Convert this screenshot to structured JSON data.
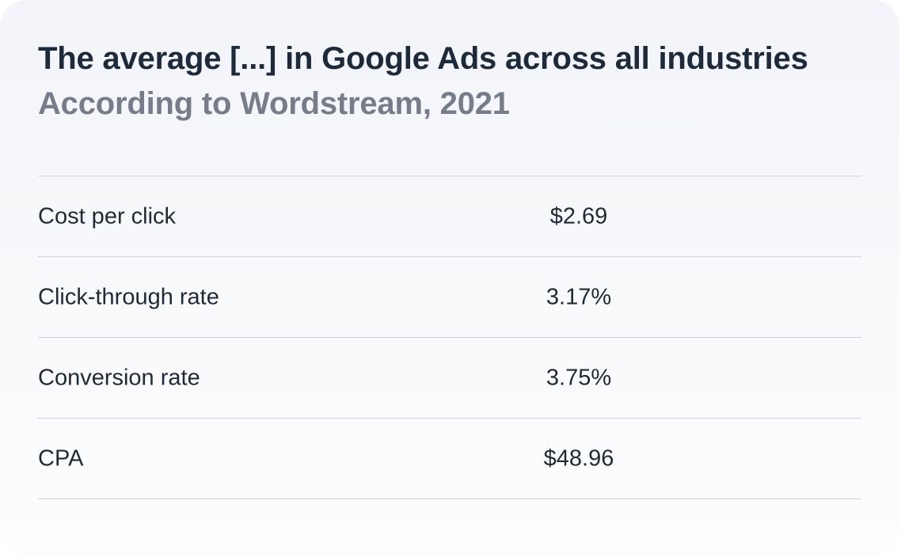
{
  "card": {
    "title": "The average [...] in Google Ads across all industries",
    "subtitle": "According to Wordstream, 2021"
  },
  "chart_data": {
    "type": "table",
    "title": "The average [...] in Google Ads across all industries",
    "subtitle": "According to Wordstream, 2021",
    "rows": [
      {
        "label": "Cost per click",
        "value": "$2.69"
      },
      {
        "label": "Click-through rate",
        "value": "3.17%"
      },
      {
        "label": "Conversion rate",
        "value": "3.75%"
      },
      {
        "label": "CPA",
        "value": "$48.96"
      }
    ]
  },
  "colors": {
    "title": "#1d2a3a",
    "subtitle": "#767c89",
    "divider": "#cfd2dd",
    "card_background": "#f5f6fa"
  }
}
